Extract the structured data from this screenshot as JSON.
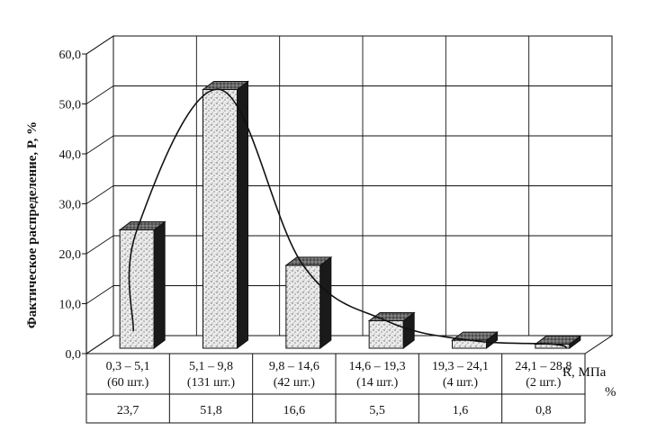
{
  "chart_data": {
    "type": "bar",
    "ylabel": "Фактическое распределение, P, %",
    "ylim": [
      0,
      60
    ],
    "yticks": [
      "0,0",
      "10,0",
      "20,0",
      "30,0",
      "40,0",
      "50,0",
      "60,0"
    ],
    "xunit": "R, МПа",
    "row_unit": "%",
    "categories": [
      {
        "range": "0,3 – 5,1",
        "count": "(60 шт.)"
      },
      {
        "range": "5,1 – 9,8",
        "count": "(131 шт.)"
      },
      {
        "range": "9,8 – 14,6",
        "count": "(42 шт.)"
      },
      {
        "range": "14,6 – 19,3",
        "count": "(14 шт.)"
      },
      {
        "range": "19,3 – 24,1",
        "count": "(4 шт.)"
      },
      {
        "range": "24,1 – 28,8",
        "count": "(2 шт.)"
      }
    ],
    "values": [
      23.7,
      51.8,
      16.6,
      5.5,
      1.6,
      0.8
    ],
    "value_labels": [
      "23,7",
      "51,8",
      "16,6",
      "5,5",
      "1,6",
      "0,8"
    ],
    "fitted_curve": true,
    "grid": true,
    "legend": "none"
  },
  "colors": {
    "bar_front": "#e4e4e4",
    "bar_side": "#1a1a1a",
    "bar_top": "#555555",
    "line": "#111111"
  }
}
